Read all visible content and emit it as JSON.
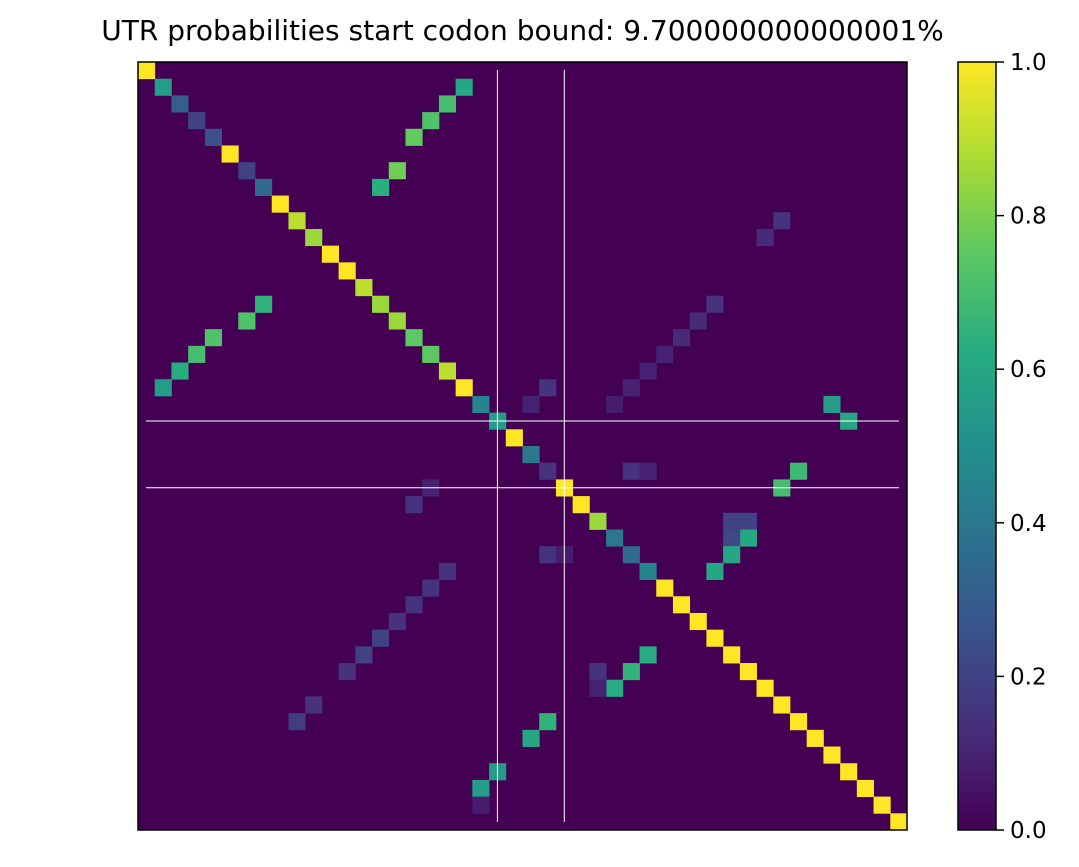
{
  "chart_data": {
    "type": "heatmap",
    "title": "UTR probabilities start codon bound: 9.700000000000001%",
    "n": 46,
    "colormap": "viridis",
    "vmin": 0.0,
    "vmax": 1.0,
    "colorbar_ticks": [
      "0.0",
      "0.2",
      "0.4",
      "0.6",
      "0.8",
      "1.0"
    ],
    "colorbar_tick_values": [
      0.0,
      0.2,
      0.4,
      0.6,
      0.8,
      1.0
    ],
    "background_value": 0.0,
    "xticks": [],
    "yticks": [],
    "marker_lines_index": [
      21.5,
      25.5
    ],
    "diagonal": [
      1.0,
      0.55,
      0.3,
      0.2,
      0.25,
      1.0,
      0.2,
      0.35,
      1.0,
      0.9,
      0.85,
      1.0,
      1.0,
      0.9,
      0.85,
      0.85,
      0.75,
      0.75,
      0.9,
      1.0,
      0.45,
      0.55,
      1.0,
      0.4,
      0.15,
      1.0,
      1.0,
      0.85,
      0.4,
      0.35,
      0.45,
      1.0,
      1.0,
      1.0,
      1.0,
      1.0,
      1.0,
      1.0,
      1.0,
      1.0,
      1.0,
      1.0,
      1.0,
      1.0,
      1.0,
      1.0
    ],
    "cells": [
      [
        1,
        19,
        0.6
      ],
      [
        2,
        18,
        0.7
      ],
      [
        3,
        17,
        0.72
      ],
      [
        4,
        16,
        0.76
      ],
      [
        6,
        15,
        0.78
      ],
      [
        7,
        14,
        0.63
      ],
      [
        9,
        38,
        0.15
      ],
      [
        10,
        37,
        0.12
      ],
      [
        14,
        34,
        0.15
      ],
      [
        15,
        33,
        0.12
      ],
      [
        16,
        32,
        0.12
      ],
      [
        17,
        31,
        0.1
      ],
      [
        18,
        30,
        0.1
      ],
      [
        19,
        29,
        0.1
      ],
      [
        20,
        28,
        0.08
      ],
      [
        19,
        24,
        0.15
      ],
      [
        20,
        23,
        0.1
      ],
      [
        14,
        7,
        0.65
      ],
      [
        15,
        6,
        0.72
      ],
      [
        16,
        4,
        0.72
      ],
      [
        17,
        3,
        0.7
      ],
      [
        18,
        2,
        0.62
      ],
      [
        19,
        1,
        0.55
      ],
      [
        20,
        41,
        0.55
      ],
      [
        21,
        42,
        0.6
      ],
      [
        24,
        39,
        0.68
      ],
      [
        25,
        38,
        0.7
      ],
      [
        24,
        29,
        0.15
      ],
      [
        24,
        30,
        0.1
      ],
      [
        25,
        17,
        0.1
      ],
      [
        26,
        16,
        0.15
      ],
      [
        27,
        36,
        0.2
      ],
      [
        27,
        35,
        0.2
      ],
      [
        28,
        36,
        0.6
      ],
      [
        28,
        35,
        0.22
      ],
      [
        29,
        35,
        0.6
      ],
      [
        30,
        34,
        0.6
      ],
      [
        29,
        24,
        0.15
      ],
      [
        29,
        25,
        0.08
      ],
      [
        30,
        18,
        0.15
      ],
      [
        31,
        17,
        0.15
      ],
      [
        32,
        16,
        0.15
      ],
      [
        33,
        15,
        0.15
      ],
      [
        34,
        14,
        0.2
      ],
      [
        35,
        13,
        0.2
      ],
      [
        36,
        12,
        0.15
      ],
      [
        35,
        30,
        0.62
      ],
      [
        36,
        29,
        0.65
      ],
      [
        37,
        28,
        0.62
      ],
      [
        36,
        27,
        0.15
      ],
      [
        37,
        27,
        0.1
      ],
      [
        38,
        10,
        0.15
      ],
      [
        39,
        9,
        0.18
      ],
      [
        39,
        24,
        0.65
      ],
      [
        40,
        23,
        0.6
      ],
      [
        42,
        21,
        0.55
      ],
      [
        43,
        20,
        0.55
      ],
      [
        44,
        20,
        0.08
      ]
    ]
  }
}
